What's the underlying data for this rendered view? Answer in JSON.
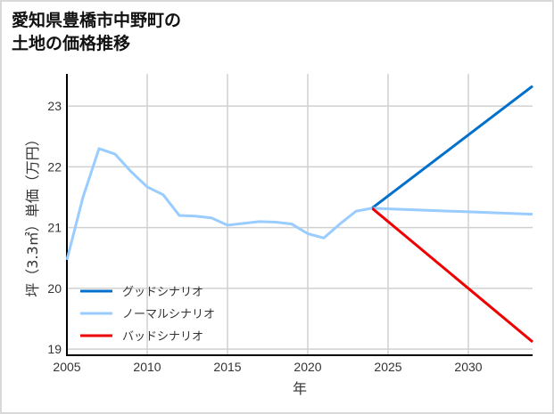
{
  "chart_data": {
    "type": "line",
    "title_lines": [
      "愛知県豊橋市中野町の",
      "土地の価格推移"
    ],
    "xlabel": "年",
    "ylabel": "坪（3.3㎡）単価（万円）",
    "xlim": [
      2005,
      2034
    ],
    "ylim": [
      18.9,
      23.53
    ],
    "xticks": [
      2005,
      2010,
      2015,
      2020,
      2025,
      2030
    ],
    "yticks": [
      19,
      20,
      21,
      22,
      23
    ],
    "grid": true,
    "legend_position": "lower-left",
    "history": {
      "x": [
        2005,
        2006,
        2007,
        2008,
        2009,
        2010,
        2011,
        2012,
        2013,
        2014,
        2015,
        2016,
        2017,
        2018,
        2019,
        2020,
        2021,
        2022,
        2023,
        2024
      ],
      "y": [
        20.47,
        21.5,
        22.3,
        22.21,
        21.92,
        21.67,
        21.54,
        21.2,
        21.19,
        21.16,
        21.04,
        21.07,
        21.1,
        21.09,
        21.06,
        20.9,
        20.83,
        21.06,
        21.27,
        21.32
      ]
    },
    "series": [
      {
        "name": "グッドシナリオ",
        "color": "#0070cc",
        "x": [
          2024,
          2034
        ],
        "y": [
          21.32,
          23.33
        ]
      },
      {
        "name": "ノーマルシナリオ",
        "color": "#99ccff",
        "x": [
          2024,
          2034
        ],
        "y": [
          21.32,
          21.22
        ]
      },
      {
        "name": "バッドシナリオ",
        "color": "#ee0000",
        "x": [
          2024,
          2034
        ],
        "y": [
          21.32,
          19.12
        ]
      }
    ]
  }
}
